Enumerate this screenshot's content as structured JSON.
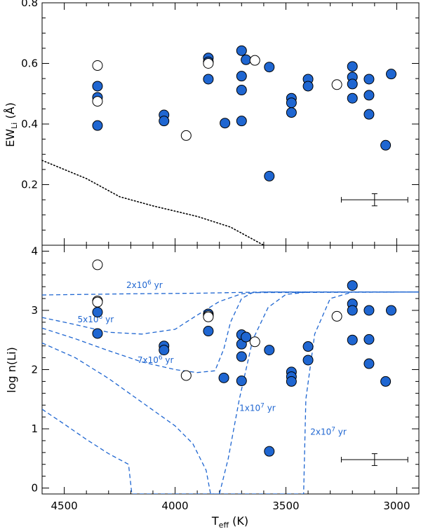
{
  "chart_data": [
    {
      "type": "scatter",
      "panel": "top",
      "ylabel": "EW",
      "ylabel_sub": "Li",
      "ylabel_unit": " (Å)",
      "xlim": [
        4600,
        2900
      ],
      "ylim": [
        0.0,
        0.8
      ],
      "yticks": [
        "0.2",
        "0.4",
        "0.6",
        "0.8"
      ],
      "ytick_values": [
        0.2,
        0.4,
        0.6,
        0.8
      ],
      "series": [
        {
          "marker": "filled-circle",
          "color": "#1f66d1",
          "points": [
            [
              4350,
              0.525
            ],
            [
              4350,
              0.488
            ],
            [
              4350,
              0.395
            ],
            [
              4050,
              0.43
            ],
            [
              4050,
              0.41
            ],
            [
              3850,
              0.618
            ],
            [
              3850,
              0.605
            ],
            [
              3850,
              0.548
            ],
            [
              3775,
              0.403
            ],
            [
              3700,
              0.642
            ],
            [
              3700,
              0.558
            ],
            [
              3700,
              0.512
            ],
            [
              3700,
              0.41
            ],
            [
              3680,
              0.612
            ],
            [
              3575,
              0.588
            ],
            [
              3575,
              0.228
            ],
            [
              3475,
              0.485
            ],
            [
              3475,
              0.47
            ],
            [
              3475,
              0.438
            ],
            [
              3400,
              0.548
            ],
            [
              3400,
              0.525
            ],
            [
              3200,
              0.59
            ],
            [
              3200,
              0.555
            ],
            [
              3200,
              0.532
            ],
            [
              3200,
              0.485
            ],
            [
              3125,
              0.548
            ],
            [
              3125,
              0.495
            ],
            [
              3125,
              0.432
            ],
            [
              3050,
              0.33
            ],
            [
              3025,
              0.565
            ]
          ]
        },
        {
          "marker": "open-circle",
          "color": "#000000",
          "points": [
            [
              4350,
              0.593
            ],
            [
              4350,
              0.475
            ],
            [
              3950,
              0.362
            ],
            [
              3850,
              0.6
            ],
            [
              3640,
              0.61
            ],
            [
              3270,
              0.53
            ]
          ]
        },
        {
          "line": "dotted",
          "color": "#000000",
          "points": [
            [
              4600,
              0.28
            ],
            [
              4400,
              0.22
            ],
            [
              4250,
              0.16
            ],
            [
              4100,
              0.13
            ],
            [
              3900,
              0.095
            ],
            [
              3750,
              0.06
            ],
            [
              3650,
              0.02
            ],
            [
              3600,
              0.0
            ]
          ]
        }
      ],
      "error_bar": {
        "x": 3100,
        "y": 0.15,
        "xerr": 150,
        "yerr": 0.02
      }
    },
    {
      "type": "line",
      "panel": "bottom",
      "xlabel": "T",
      "xlabel_sub": "eff",
      "xlabel_unit": " (K)",
      "ylabel": "log n(Li)",
      "xlim": [
        4600,
        2900
      ],
      "ylim": [
        -0.1,
        4.1
      ],
      "yticks": [
        "0",
        "1",
        "2",
        "3",
        "4"
      ],
      "ytick_values": [
        0,
        1,
        2,
        3,
        4
      ],
      "xticks": [
        "4500",
        "4000",
        "3500",
        "3000"
      ],
      "xtick_values": [
        4500,
        4000,
        3500,
        3000
      ],
      "isochrones": [
        {
          "label": "2x10",
          "exp": "6",
          "unit": " yr",
          "label_x": 4220,
          "label_y": 3.38,
          "points": [
            [
              4600,
              3.26
            ],
            [
              4200,
              3.28
            ],
            [
              3900,
              3.29
            ],
            [
              3600,
              3.31
            ],
            [
              2900,
              3.31
            ]
          ]
        },
        {
          "label": "5x10",
          "exp": "6",
          "unit": " yr",
          "label_x": 4440,
          "label_y": 2.8,
          "points": [
            [
              4600,
              2.88
            ],
            [
              4450,
              2.76
            ],
            [
              4300,
              2.63
            ],
            [
              4150,
              2.6
            ],
            [
              4000,
              2.68
            ],
            [
              3900,
              2.92
            ],
            [
              3800,
              3.15
            ],
            [
              3700,
              3.28
            ],
            [
              3600,
              3.31
            ],
            [
              2900,
              3.31
            ]
          ]
        },
        {
          "label": "7x10",
          "exp": "6",
          "unit": " yr",
          "label_x": 4170,
          "label_y": 2.11,
          "points": [
            [
              4600,
              2.7
            ],
            [
              4450,
              2.52
            ],
            [
              4300,
              2.32
            ],
            [
              4150,
              2.13
            ],
            [
              4000,
              2.0
            ],
            [
              3900,
              1.95
            ],
            [
              3820,
              1.98
            ],
            [
              3780,
              2.35
            ],
            [
              3750,
              2.8
            ],
            [
              3700,
              3.2
            ],
            [
              3650,
              3.3
            ],
            [
              2900,
              3.31
            ]
          ]
        },
        {
          "label": "1x10",
          "exp": "7",
          "unit": " yr",
          "label_x": 3710,
          "label_y": 1.3,
          "points": [
            [
              4600,
              2.45
            ],
            [
              4450,
              2.2
            ],
            [
              4300,
              1.85
            ],
            [
              4150,
              1.45
            ],
            [
              4000,
              1.05
            ],
            [
              3920,
              0.75
            ],
            [
              3860,
              0.3
            ],
            [
              3840,
              -0.1
            ],
            [
              3800,
              -0.1
            ],
            [
              3760,
              0.5
            ],
            [
              3710,
              1.5
            ],
            [
              3650,
              2.5
            ],
            [
              3580,
              3.05
            ],
            [
              3500,
              3.27
            ],
            [
              3400,
              3.31
            ],
            [
              2900,
              3.31
            ]
          ]
        },
        {
          "label": "2x10",
          "exp": "7",
          "unit": " yr",
          "label_x": 3390,
          "label_y": 0.9,
          "points": [
            [
              4600,
              1.33
            ],
            [
              4500,
              1.08
            ],
            [
              4400,
              0.82
            ],
            [
              4300,
              0.58
            ],
            [
              4210,
              0.4
            ],
            [
              4195,
              -0.1
            ],
            [
              3420,
              -0.1
            ],
            [
              3410,
              1.5
            ],
            [
              3370,
              2.6
            ],
            [
              3300,
              3.2
            ],
            [
              3200,
              3.31
            ],
            [
              2900,
              3.31
            ]
          ]
        }
      ],
      "series": [
        {
          "marker": "filled-circle",
          "color": "#1f66d1",
          "points": [
            [
              4350,
              2.97
            ],
            [
              4350,
              2.61
            ],
            [
              4050,
              2.4
            ],
            [
              4050,
              2.33
            ],
            [
              3850,
              2.94
            ],
            [
              3850,
              2.65
            ],
            [
              3780,
              1.86
            ],
            [
              3700,
              2.59
            ],
            [
              3700,
              2.43
            ],
            [
              3700,
              2.22
            ],
            [
              3700,
              1.81
            ],
            [
              3680,
              2.55
            ],
            [
              3575,
              2.33
            ],
            [
              3575,
              0.62
            ],
            [
              3475,
              1.96
            ],
            [
              3475,
              1.88
            ],
            [
              3475,
              1.8
            ],
            [
              3400,
              2.39
            ],
            [
              3400,
              2.16
            ],
            [
              3200,
              3.42
            ],
            [
              3200,
              3.11
            ],
            [
              3200,
              3.0
            ],
            [
              3200,
              2.5
            ],
            [
              3125,
              3.0
            ],
            [
              3125,
              2.51
            ],
            [
              3125,
              2.1
            ],
            [
              3050,
              1.8
            ],
            [
              3025,
              3.0
            ]
          ]
        },
        {
          "marker": "open-circle",
          "color": "#000000",
          "points": [
            [
              4350,
              3.77
            ],
            [
              4350,
              3.16
            ],
            [
              4350,
              3.14
            ],
            [
              3950,
              1.9
            ],
            [
              3850,
              2.91
            ],
            [
              3850,
              2.89
            ],
            [
              3640,
              2.47
            ],
            [
              3270,
              2.9
            ]
          ]
        }
      ],
      "error_bar": {
        "x": 3100,
        "y": 0.48,
        "xerr": 150,
        "yerr": 0.1
      }
    }
  ]
}
